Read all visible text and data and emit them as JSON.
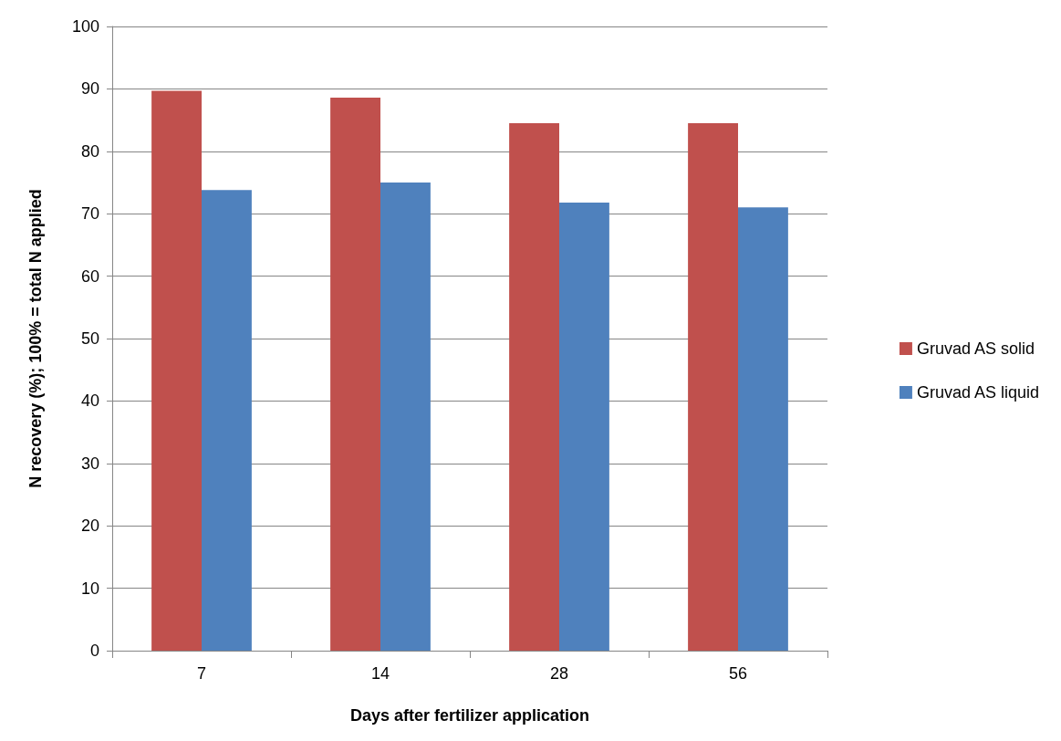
{
  "chart_data": {
    "type": "bar",
    "xlabel": "Days after fertilizer application",
    "ylabel": "N recovery (%); 100% = total N applied",
    "categories": [
      "7",
      "14",
      "28",
      "56"
    ],
    "series": [
      {
        "name": "Gruvad AS solid",
        "color": "#c0504d",
        "values": [
          89.7,
          88.6,
          84.5,
          84.5
        ]
      },
      {
        "name": "Gruvad AS liquid",
        "color": "#4f81bd",
        "values": [
          73.8,
          75,
          71.8,
          71
        ]
      }
    ],
    "ylim": [
      0,
      100
    ],
    "yticks": [
      0,
      10,
      20,
      30,
      40,
      50,
      60,
      70,
      80,
      90,
      100
    ],
    "grid": "y",
    "legend": "right"
  }
}
